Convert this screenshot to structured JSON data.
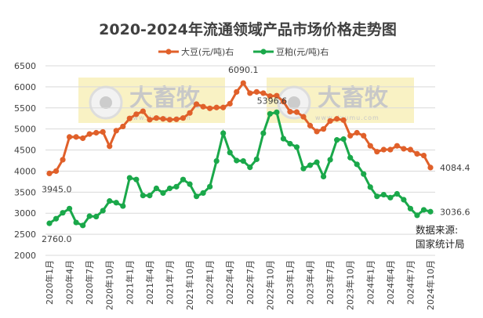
{
  "chart_data": {
    "type": "line",
    "title": "2020-2024年流通领域产品市场价格走势图",
    "ylim": [
      2000,
      6500
    ],
    "yticks": [
      2000,
      2500,
      3000,
      3500,
      4000,
      4500,
      5000,
      5500,
      6000,
      6500
    ],
    "grid": true,
    "legend_placement": "top",
    "x": [
      "2020-01",
      "2020-02",
      "2020-03",
      "2020-04",
      "2020-05",
      "2020-06",
      "2020-07",
      "2020-08",
      "2020-09",
      "2020-10",
      "2020-11",
      "2020-12",
      "2021-01",
      "2021-02",
      "2021-03",
      "2021-04",
      "2021-05",
      "2021-06",
      "2021-07",
      "2021-08",
      "2021-09",
      "2021-10",
      "2021-11",
      "2021-12",
      "2022-01",
      "2022-02",
      "2022-03",
      "2022-04",
      "2022-05",
      "2022-06",
      "2022-07",
      "2022-08",
      "2022-09",
      "2022-10",
      "2022-11",
      "2022-12",
      "2023-01",
      "2023-02",
      "2023-03",
      "2023-04",
      "2023-05",
      "2023-06",
      "2023-07",
      "2023-08",
      "2023-09",
      "2023-10",
      "2023-11",
      "2023-12",
      "2024-01",
      "2024-02",
      "2024-03",
      "2024-04",
      "2024-05",
      "2024-06",
      "2024-07",
      "2024-08",
      "2024-09",
      "2024-10"
    ],
    "xtick_labels": [
      "2020年1月",
      "2020年4月",
      "2020年7月",
      "2020年10月",
      "2021年1月",
      "2021年4月",
      "2021年7月",
      "2021年10月",
      "2022年1月",
      "2022年4月",
      "2022年7月",
      "2022年10月",
      "2023年1月",
      "2023年4月",
      "2023年7月",
      "2023年10月",
      "2024年1月",
      "2024年4月",
      "2024年7月",
      "2024年10月"
    ],
    "series": [
      {
        "name": "大豆(元/吨)右",
        "color": "#e0602a",
        "values": [
          3945.0,
          4000,
          4270,
          4810,
          4810,
          4780,
          4880,
          4910,
          4930,
          4590,
          4960,
          5060,
          5250,
          5350,
          5420,
          5220,
          5260,
          5240,
          5220,
          5230,
          5260,
          5380,
          5590,
          5530,
          5490,
          5510,
          5510,
          5600,
          5880,
          6090.1,
          5850,
          5880,
          5850,
          5780,
          5790,
          5650,
          5410,
          5400,
          5290,
          5080,
          4940,
          5000,
          5190,
          5240,
          5210,
          4840,
          4910,
          4840,
          4600,
          4460,
          4510,
          4510,
          4600,
          4530,
          4510,
          4410,
          4370,
          4084.4
        ]
      },
      {
        "name": "豆粕(元/吨)右",
        "color": "#1aa84a",
        "values": [
          2760.0,
          2870,
          3010,
          3110,
          2780,
          2710,
          2930,
          2920,
          3060,
          3290,
          3250,
          3170,
          3840,
          3800,
          3420,
          3420,
          3590,
          3480,
          3590,
          3630,
          3800,
          3690,
          3400,
          3480,
          3630,
          4240,
          4900,
          4440,
          4250,
          4240,
          4090,
          4280,
          4900,
          5360,
          5396.6,
          4770,
          4650,
          4570,
          4060,
          4140,
          4210,
          3870,
          4270,
          4740,
          4760,
          4320,
          4160,
          3930,
          3620,
          3400,
          3440,
          3370,
          3460,
          3320,
          3110,
          2950,
          3080,
          3036.6
        ]
      }
    ],
    "data_labels": [
      {
        "series": 0,
        "index": 0,
        "text": "3945.0"
      },
      {
        "series": 0,
        "index": 29,
        "text": "6090.1"
      },
      {
        "series": 0,
        "index": 57,
        "text": "4084.4"
      },
      {
        "series": 1,
        "index": 0,
        "text": "2760.0"
      },
      {
        "series": 1,
        "index": 34,
        "text": "5396.6"
      },
      {
        "series": 1,
        "index": 57,
        "text": "3036.6"
      }
    ],
    "source_line1": "数据来源:",
    "source_line2": "国家统计局"
  },
  "watermark": {
    "brand": "大畜牧",
    "url": "www.dxumu.com"
  }
}
